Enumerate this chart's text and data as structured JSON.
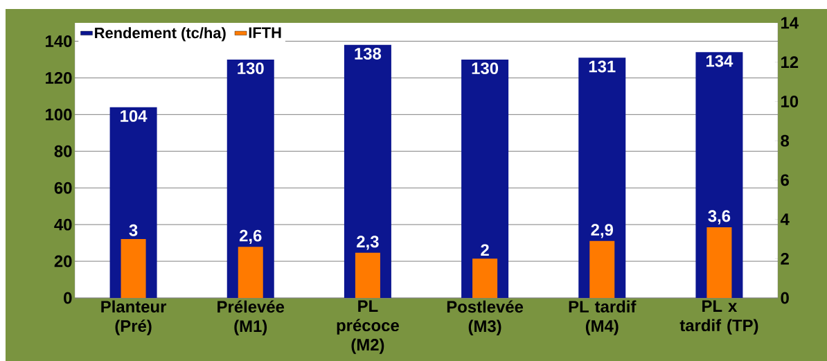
{
  "chart_data": {
    "type": "bar",
    "categories": [
      "Planteur (Pré)",
      "Prélevée (M1)",
      "PL précoce (M2)",
      "Postlevée (M3)",
      "PL tardif (M4)",
      "PL x tardif (TP)"
    ],
    "series": [
      {
        "name": "Rendement (tc/ha)",
        "color": "#0c1690",
        "values": [
          104,
          130,
          138,
          130,
          131,
          134
        ],
        "value_labels": [
          "104",
          "130",
          "138",
          "130",
          "131",
          "134"
        ]
      },
      {
        "name": "IFTH",
        "color": "#ff7a00",
        "axis": "y2",
        "values": [
          3,
          2.6,
          2.3,
          2,
          2.9,
          3.6
        ],
        "value_labels": [
          "3",
          "2,6",
          "2,3",
          "2",
          "2,9",
          "3,6"
        ]
      }
    ],
    "ylim": [
      0,
      150
    ],
    "yticks": [
      0,
      20,
      40,
      60,
      80,
      100,
      120,
      140
    ],
    "y2lim": [
      0,
      14
    ],
    "y2ticks": [
      0,
      2,
      4,
      6,
      8,
      10,
      12,
      14
    ],
    "grid": "y",
    "legend": "top left"
  }
}
